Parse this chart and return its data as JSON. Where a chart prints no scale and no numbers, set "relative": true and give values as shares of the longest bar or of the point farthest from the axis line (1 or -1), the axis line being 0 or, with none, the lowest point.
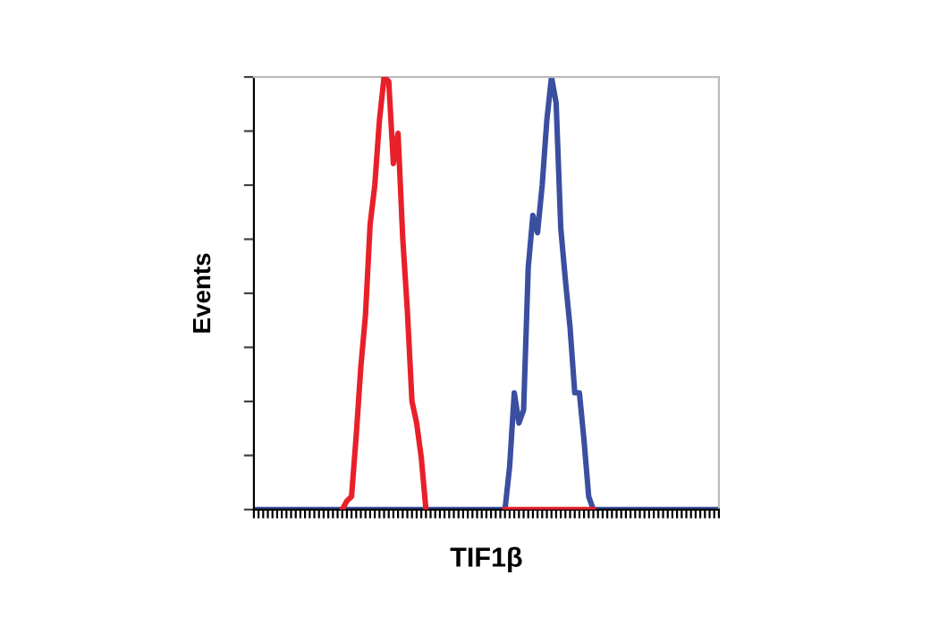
{
  "chart_data": {
    "type": "line",
    "relative": true,
    "xlabel": "TIF1β",
    "ylabel": "Events",
    "grid": false,
    "categories": [
      null,
      null,
      null,
      null,
      null,
      null,
      null,
      null,
      null,
      null,
      null,
      null,
      null,
      null,
      null,
      null,
      null,
      null,
      null,
      null,
      null,
      null,
      null,
      null,
      null,
      null,
      null,
      null,
      null,
      null,
      null,
      null,
      null,
      null,
      null,
      null,
      null,
      null,
      null,
      null,
      null,
      null,
      null,
      null,
      null,
      null,
      null,
      null,
      null,
      null,
      null,
      null,
      null,
      null,
      null,
      null,
      null,
      null,
      null,
      null,
      null,
      null,
      null,
      null,
      null,
      null,
      null,
      null,
      null,
      null,
      null,
      null,
      null,
      null,
      null,
      null,
      null,
      null,
      null,
      null,
      null,
      null,
      null,
      null,
      null,
      null,
      null,
      null,
      null,
      null,
      null,
      null,
      null,
      null,
      null,
      null,
      null,
      null,
      null,
      null,
      null
    ],
    "series": [
      {
        "color": "#e8202a",
        "values": [
          null,
          null,
          null,
          null,
          null,
          null,
          null,
          null,
          null,
          null,
          null,
          null,
          null,
          null,
          null,
          null,
          null,
          null,
          null,
          0,
          0.02,
          0.03,
          0.17,
          0.33,
          0.45,
          0.66,
          0.75,
          0.9,
          1.0,
          0.99,
          0.8,
          0.87,
          0.63,
          0.46,
          0.25,
          0.2,
          0.12,
          0,
          null,
          null,
          null,
          null,
          null,
          null,
          null,
          null,
          null,
          null,
          null,
          null,
          null,
          null,
          null,
          null,
          0,
          0,
          0,
          0,
          0,
          0,
          0,
          0,
          0,
          0,
          0,
          0,
          0,
          0,
          0,
          0,
          0,
          0,
          0,
          0,
          null,
          null,
          null,
          null,
          null,
          null,
          null,
          null,
          null,
          null,
          null,
          null,
          null,
          null,
          null,
          null,
          null,
          null,
          null,
          null,
          null,
          null,
          null,
          null,
          null,
          null,
          null
        ]
      },
      {
        "color": "#3a4fa0",
        "values": [
          0,
          0,
          0,
          0,
          0,
          0,
          0,
          0,
          0,
          0,
          0,
          0,
          0,
          0,
          0,
          0,
          0,
          0,
          0,
          0,
          0,
          0,
          0,
          0,
          0,
          0,
          0,
          0,
          0,
          0,
          0,
          0,
          0,
          0,
          0,
          0,
          0,
          0,
          0,
          0,
          0,
          0,
          0,
          0,
          0,
          0,
          0,
          0,
          0,
          0,
          0,
          0,
          0,
          0,
          0,
          0.1,
          0.27,
          0.2,
          0.23,
          0.56,
          0.68,
          0.64,
          0.75,
          0.9,
          1.0,
          0.94,
          0.65,
          0.53,
          0.42,
          0.27,
          0.27,
          0.16,
          0.03,
          0,
          0,
          0,
          0,
          0,
          0,
          0,
          0,
          0,
          0,
          0,
          0,
          0,
          0,
          0,
          0,
          0,
          0,
          0,
          0,
          0,
          0,
          0,
          0,
          0,
          0,
          0,
          0
        ]
      }
    ]
  }
}
